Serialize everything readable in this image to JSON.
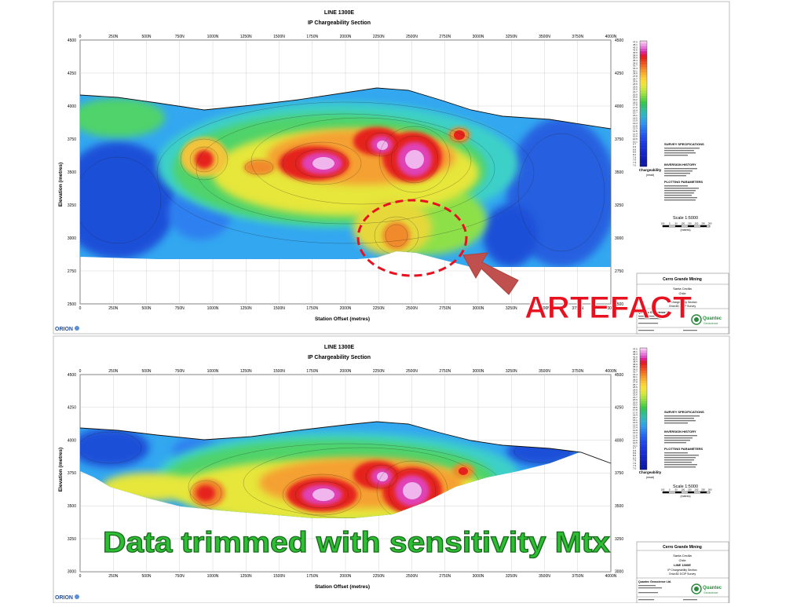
{
  "top_panel": {
    "title": "LINE 1300E",
    "subtitle": "IP Chargeability Section",
    "x_ticks": [
      "0",
      "250N",
      "500N",
      "750N",
      "1000N",
      "1250N",
      "1500N",
      "1750N",
      "2000N",
      "2250N",
      "2500N",
      "2750N",
      "3000N",
      "3250N",
      "3500N",
      "3750N",
      "4000N"
    ],
    "y_ticks": [
      "4500",
      "4250",
      "4000",
      "3750",
      "3500",
      "3250",
      "3000",
      "2750",
      "2500"
    ],
    "y_axis_label": "Elevation (metres)",
    "x_axis_label": "Station Offset (metres)",
    "logo": "ORION",
    "annotation": "ARTEFACT"
  },
  "bottom_panel": {
    "title": "LINE 1300E",
    "subtitle": "IP Chargeability Section",
    "x_ticks": [
      "0",
      "250N",
      "500N",
      "750N",
      "1000N",
      "1250N",
      "1500N",
      "1750N",
      "2000N",
      "2250N",
      "2500N",
      "2750N",
      "3000N",
      "3250N",
      "3500N",
      "3750N",
      "4000N"
    ],
    "y_ticks": [
      "4500",
      "4250",
      "4000",
      "3750",
      "3500",
      "3250",
      "3000"
    ],
    "y_axis_label": "Elevation (metres)",
    "x_axis_label": "Station Offset (metres)",
    "logo": "ORION",
    "annotation": "Data trimmed with sensitivity Mtx"
  },
  "legend": {
    "values": [
      "47.0",
      "45.1",
      "43.3",
      "41.6",
      "40.0",
      "38.4",
      "36.9",
      "35.4",
      "34.0",
      "32.7",
      "31.4",
      "30.1",
      "28.9",
      "27.8",
      "26.7",
      "25.6",
      "24.6",
      "23.6",
      "22.6",
      "21.7",
      "20.9",
      "20.0",
      "19.2",
      "18.5",
      "17.8",
      "17.0",
      "16.4",
      "15.7",
      "15.1",
      "14.5",
      "13.9",
      "13.4",
      "12.8",
      "12.3",
      "11.8",
      "11.4",
      "10.9",
      "10.5",
      "10.1",
      "9.7",
      "9.3",
      "8.9",
      "8.6",
      "8.2",
      "7.9",
      "7.6",
      "7.3",
      "7.0"
    ],
    "label": "Chargeability",
    "unit": "(mrad)"
  },
  "specs": {
    "survey_title": "SURVEY SPECIFICATIONS",
    "inversion_title": "INVERSION HISTORY",
    "plotting_title": "PLOTTING PARAMETERS"
  },
  "scale": {
    "label": "Scale 1:5000",
    "ticks": [
      "100",
      "0",
      "50",
      "100",
      "150",
      "200",
      "250",
      "300"
    ],
    "unit": "(metres)"
  },
  "title_block": {
    "company": "Cerro Grande Mining",
    "project": "Santa Cecilia",
    "country": "Chile",
    "line": "LINE 1300E",
    "section": "IP Chargeability Section",
    "survey": "Orion3D DCIP Survey",
    "contractor": "Quantec Geoscience Ltd.",
    "brand": "Quantec",
    "brand_sub": "Geoscience"
  },
  "colors": {
    "artefact": "#e8111f",
    "green_text": "#2dbe33",
    "arrow": "#c0504d"
  }
}
